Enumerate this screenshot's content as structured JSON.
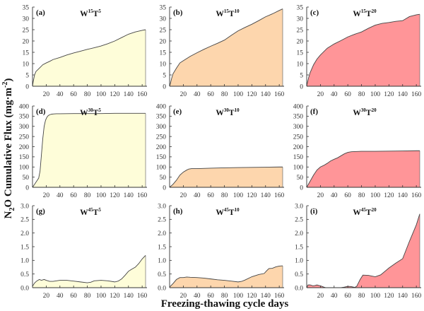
{
  "chart_data": {
    "type": "area",
    "figure": {
      "xlabel": "Freezing-thawing cycle days",
      "ylabel_parts": [
        {
          "text": "N",
          "style": "normal"
        },
        {
          "text": "2",
          "style": "sub"
        },
        {
          "text": "O Cumulative Flux (mg·m",
          "style": "normal"
        },
        {
          "text": "-2",
          "style": "sup"
        },
        {
          "text": ")",
          "style": "normal"
        }
      ],
      "layout": "3x3 grid",
      "colors": {
        "T5": "#FEFDD9",
        "T10": "#FDD6AD",
        "T20": "#FF9598",
        "line": "#444444"
      }
    },
    "panels": [
      {
        "id": "a",
        "label": "(a)",
        "title_w": "15",
        "title_t": "5",
        "fill": "#FEFDD9",
        "xlim": [
          0,
          165
        ],
        "ylim": [
          0,
          35
        ],
        "xticks": [
          20,
          40,
          60,
          80,
          100,
          120,
          140,
          160
        ],
        "yticks": [
          0,
          5,
          10,
          15,
          20,
          25,
          30,
          35
        ],
        "ytick_labels": [
          "0",
          "5",
          "10",
          "15",
          "20",
          "25",
          "30",
          "35"
        ],
        "x": [
          0,
          1,
          3,
          5,
          10,
          15,
          20,
          25,
          30,
          40,
          50,
          60,
          70,
          80,
          90,
          100,
          110,
          120,
          130,
          140,
          150,
          160,
          165
        ],
        "y": [
          0,
          2,
          5,
          6.5,
          8,
          9.5,
          10.3,
          11,
          11.8,
          12.7,
          13.8,
          14.7,
          15.5,
          16.3,
          17,
          17.8,
          18.8,
          20,
          21.5,
          23,
          24,
          24.7,
          25
        ]
      },
      {
        "id": "b",
        "label": "(b)",
        "title_w": "15",
        "title_t": "10",
        "fill": "#FDD6AD",
        "xlim": [
          0,
          165
        ],
        "ylim": [
          0,
          35
        ],
        "xticks": [
          20,
          40,
          60,
          80,
          100,
          120,
          140,
          160
        ],
        "yticks": [
          0,
          5,
          10,
          15,
          20,
          25,
          30,
          35
        ],
        "ytick_labels": [
          "0",
          "5",
          "10",
          "15",
          "20",
          "25",
          "30",
          "35"
        ],
        "x": [
          0,
          1,
          3,
          5,
          10,
          15,
          20,
          30,
          40,
          50,
          60,
          70,
          80,
          90,
          100,
          110,
          120,
          130,
          140,
          150,
          160,
          165
        ],
        "y": [
          0,
          1,
          3.5,
          5.5,
          8,
          10.3,
          11.3,
          13.2,
          14.8,
          16.3,
          17.7,
          19,
          20.4,
          22.5,
          24.5,
          26,
          27.4,
          29,
          30.7,
          32,
          33.5,
          34.2
        ]
      },
      {
        "id": "c",
        "label": "(c)",
        "title_w": "15",
        "title_t": "20",
        "fill": "#FF9598",
        "xlim": [
          0,
          165
        ],
        "ylim": [
          0,
          35
        ],
        "xticks": [
          20,
          40,
          60,
          80,
          100,
          120,
          140,
          160
        ],
        "yticks": [
          0,
          5,
          10,
          15,
          20,
          25,
          30,
          35
        ],
        "ytick_labels": [
          "0",
          "5",
          "10",
          "15",
          "20",
          "25",
          "30",
          "35"
        ],
        "x": [
          0,
          1,
          3,
          5,
          10,
          15,
          20,
          30,
          40,
          50,
          60,
          70,
          80,
          90,
          100,
          110,
          120,
          130,
          140,
          150,
          160,
          165
        ],
        "y": [
          0,
          1.5,
          4,
          6,
          9.5,
          12,
          13.8,
          16.8,
          18.7,
          20.2,
          21.8,
          23,
          24,
          25.6,
          27,
          27.8,
          28.2,
          28.7,
          29,
          30.8,
          31.6,
          31.8
        ]
      },
      {
        "id": "d",
        "label": "(d)",
        "title_w": "30",
        "title_t": "5",
        "fill": "#FEFDD9",
        "xlim": [
          0,
          165
        ],
        "ylim": [
          0,
          400
        ],
        "xticks": [
          20,
          40,
          60,
          80,
          100,
          120,
          140,
          160
        ],
        "yticks": [
          0,
          50,
          100,
          150,
          200,
          250,
          300,
          350,
          400
        ],
        "ytick_labels": [
          "0",
          "50",
          "100",
          "150",
          "200",
          "250",
          "300",
          "350",
          "400"
        ],
        "x": [
          0,
          3,
          6,
          9,
          11,
          13,
          15,
          17,
          19,
          21,
          23,
          25,
          28,
          31,
          35,
          40,
          60,
          80,
          100,
          120,
          140,
          160,
          165
        ],
        "y": [
          0,
          15,
          30,
          45,
          80,
          160,
          240,
          300,
          330,
          345,
          353,
          357,
          360,
          361,
          362,
          362,
          363,
          363,
          363,
          364,
          364,
          364,
          364
        ]
      },
      {
        "id": "e",
        "label": "(e)",
        "title_w": "30",
        "title_t": "10",
        "fill": "#FDD6AD",
        "xlim": [
          0,
          165
        ],
        "ylim": [
          0,
          400
        ],
        "xticks": [
          20,
          40,
          60,
          80,
          100,
          120,
          140,
          160
        ],
        "yticks": [
          0,
          50,
          100,
          150,
          200,
          250,
          300,
          350,
          400
        ],
        "ytick_labels": [
          "0",
          "50",
          "100",
          "150",
          "200",
          "250",
          "300",
          "350",
          "400"
        ],
        "x": [
          0,
          5,
          10,
          15,
          20,
          25,
          28,
          32,
          40,
          60,
          80,
          100,
          120,
          140,
          160,
          165
        ],
        "y": [
          0,
          15,
          35,
          60,
          75,
          85,
          90,
          92,
          92,
          94,
          96,
          97,
          98,
          99,
          100,
          100
        ]
      },
      {
        "id": "f",
        "label": "(f)",
        "title_w": "30",
        "title_t": "20",
        "fill": "#FF9598",
        "xlim": [
          0,
          165
        ],
        "ylim": [
          0,
          400
        ],
        "xticks": [
          20,
          40,
          60,
          80,
          100,
          120,
          140,
          160
        ],
        "yticks": [
          0,
          50,
          100,
          150,
          200,
          250,
          300,
          350,
          400
        ],
        "ytick_labels": [
          "0",
          "50",
          "100",
          "150",
          "200",
          "250",
          "300",
          "350",
          "400"
        ],
        "x": [
          0,
          5,
          10,
          15,
          20,
          25,
          30,
          35,
          40,
          45,
          50,
          55,
          60,
          65,
          70,
          80,
          100,
          120,
          140,
          160,
          165
        ],
        "y": [
          0,
          30,
          60,
          85,
          100,
          108,
          118,
          130,
          138,
          145,
          155,
          165,
          172,
          175,
          176,
          177,
          177,
          178,
          179,
          180,
          180
        ]
      },
      {
        "id": "g",
        "label": "(g)",
        "title_w": "45",
        "title_t": "5",
        "fill": "#FEFDD9",
        "xlim": [
          0,
          165
        ],
        "ylim": [
          0,
          3.0
        ],
        "xticks": [
          20,
          40,
          60,
          80,
          100,
          120,
          140,
          160
        ],
        "yticks": [
          0,
          0.5,
          1.0,
          1.5,
          2.0,
          2.5,
          3.0
        ],
        "ytick_labels": [
          "0.0",
          "0.5",
          "1.0",
          "1.5",
          "2.0",
          "2.5",
          "3.0"
        ],
        "x": [
          0,
          3,
          6,
          10,
          13,
          17,
          20,
          25,
          30,
          40,
          50,
          60,
          70,
          80,
          85,
          90,
          100,
          110,
          120,
          125,
          130,
          135,
          140,
          145,
          150,
          155,
          160,
          165
        ],
        "y": [
          0.05,
          0.17,
          0.24,
          0.3,
          0.27,
          0.3,
          0.27,
          0.23,
          0.23,
          0.27,
          0.27,
          0.24,
          0.21,
          0.18,
          0.2,
          0.25,
          0.27,
          0.25,
          0.21,
          0.24,
          0.32,
          0.45,
          0.6,
          0.68,
          0.75,
          0.88,
          1.05,
          1.18
        ]
      },
      {
        "id": "h",
        "label": "(h)",
        "title_w": "45",
        "title_t": "10",
        "fill": "#FDD6AD",
        "xlim": [
          0,
          165
        ],
        "ylim": [
          0,
          3.0
        ],
        "xticks": [
          20,
          40,
          60,
          80,
          100,
          120,
          140,
          160
        ],
        "yticks": [
          0,
          0.5,
          1.0,
          1.5,
          2.0,
          2.5,
          3.0
        ],
        "ytick_labels": [
          "0.0",
          "0.5",
          "1.0",
          "1.5",
          "2.0",
          "2.5",
          "3.0"
        ],
        "x": [
          0,
          5,
          10,
          15,
          20,
          25,
          30,
          40,
          50,
          60,
          70,
          80,
          90,
          100,
          105,
          110,
          120,
          130,
          138,
          142,
          145,
          150,
          155,
          160,
          165
        ],
        "y": [
          0.02,
          0.15,
          0.3,
          0.37,
          0.37,
          0.39,
          0.38,
          0.37,
          0.35,
          0.32,
          0.29,
          0.27,
          0.24,
          0.21,
          0.23,
          0.28,
          0.4,
          0.48,
          0.52,
          0.63,
          0.7,
          0.71,
          0.76,
          0.79,
          0.8
        ]
      },
      {
        "id": "i",
        "label": "(i)",
        "title_w": "45",
        "title_t": "20",
        "fill": "#FF9598",
        "xlim": [
          0,
          165
        ],
        "ylim": [
          0,
          3.0
        ],
        "xticks": [
          20,
          40,
          60,
          80,
          100,
          120,
          140,
          160
        ],
        "yticks": [
          0,
          0.5,
          1.0,
          1.5,
          2.0,
          2.5,
          3.0
        ],
        "ytick_labels": [
          "0.0",
          "0.5",
          "1.0",
          "1.5",
          "2.0",
          "2.5",
          "3.0"
        ],
        "x": [
          0,
          2,
          5,
          9,
          12,
          15,
          18,
          21,
          25,
          28,
          40,
          50,
          55,
          60,
          65,
          70,
          73,
          78,
          82,
          90,
          100,
          108,
          120,
          130,
          140,
          150,
          160,
          165
        ],
        "y": [
          0,
          0.1,
          0.1,
          0.07,
          0.08,
          0.1,
          0.08,
          0.06,
          0.02,
          0,
          0,
          0,
          0.02,
          0.05,
          0.04,
          0.01,
          0.05,
          0.3,
          0.46,
          0.45,
          0.4,
          0.47,
          0.72,
          0.9,
          1.06,
          1.7,
          2.3,
          2.7
        ]
      }
    ]
  }
}
